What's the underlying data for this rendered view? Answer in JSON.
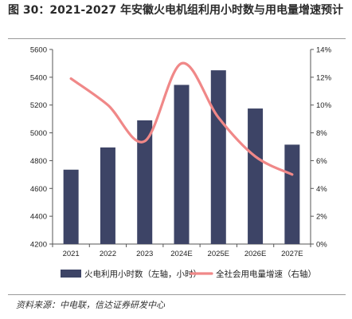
{
  "title": "图 30：2021-2027 年安徽火电机组利用小时数与用电量增速预计",
  "source": "资料来源：中电联，信达证券研发中心",
  "colors": {
    "bar": "#3d4466",
    "line": "#f08888",
    "axis": "#555555"
  },
  "chart_data": {
    "type": "bar",
    "categories": [
      "2021",
      "2022",
      "2023",
      "2024E",
      "2025E",
      "2026E",
      "2027E"
    ],
    "series": [
      {
        "name": "火电利用小时数（左轴，小时）",
        "type": "bar",
        "axis": "left",
        "values": [
          4735,
          4895,
          5090,
          5345,
          5450,
          5175,
          4915
        ]
      },
      {
        "name": "全社会用电量增速（右轴）",
        "type": "line",
        "axis": "right",
        "values": [
          11.9,
          10.0,
          7.4,
          13.0,
          9.1,
          6.3,
          5.0
        ]
      }
    ],
    "ylim_left": [
      4200,
      5600
    ],
    "yticks_left": [
      "4200",
      "4400",
      "4600",
      "4800",
      "5000",
      "5200",
      "5400",
      "5600"
    ],
    "ylim_right": [
      0,
      14
    ],
    "yticks_right": [
      "0%",
      "2%",
      "4%",
      "6%",
      "8%",
      "10%",
      "12%",
      "14%"
    ],
    "legend_position": "bottom",
    "grid": false
  }
}
